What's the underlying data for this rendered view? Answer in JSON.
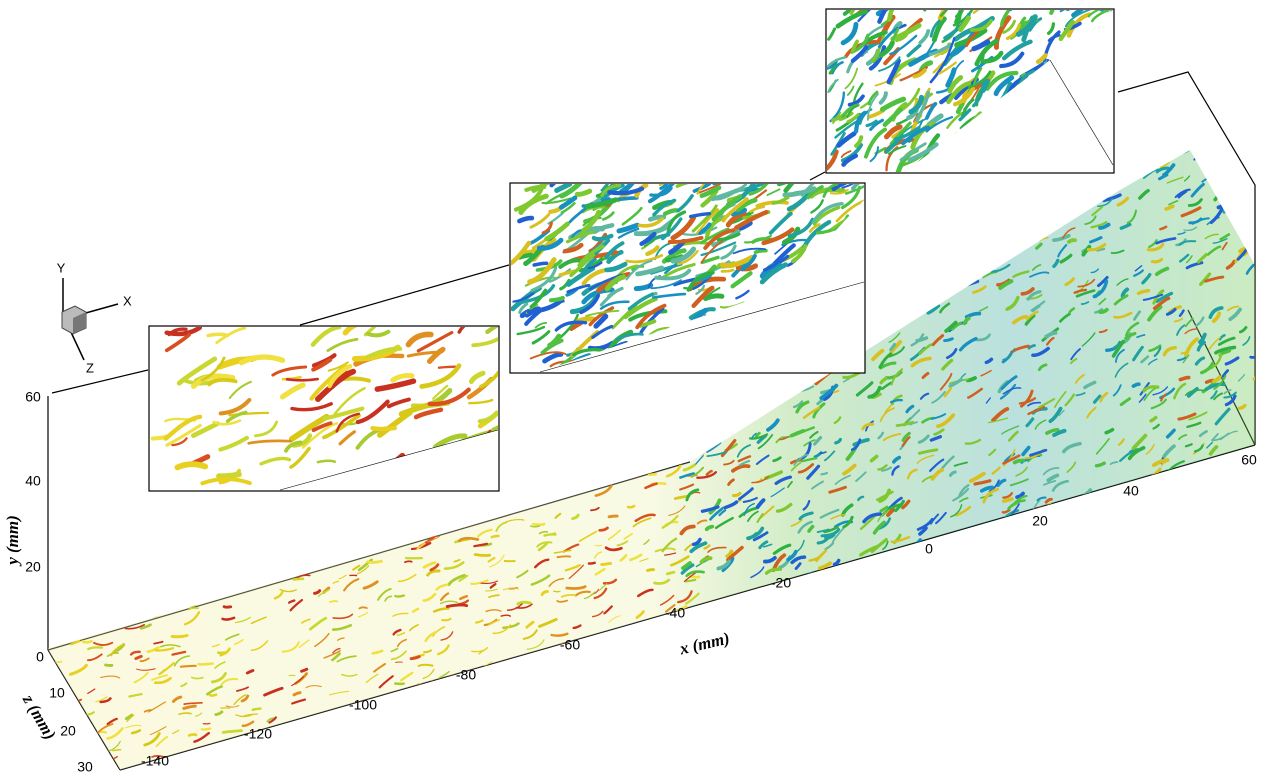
{
  "axes": {
    "x": {
      "label": "x (mm)",
      "ticks": [
        -140,
        -120,
        -100,
        -80,
        -60,
        -40,
        -20,
        0,
        20,
        40,
        60
      ]
    },
    "y": {
      "label": "y (mm)",
      "ticks": [
        0,
        20,
        40,
        60
      ]
    },
    "z": {
      "label": "z (mm)",
      "ticks": [
        10,
        20,
        30
      ]
    }
  },
  "triad": {
    "labels": [
      "X",
      "Y",
      "Z"
    ]
  }
}
